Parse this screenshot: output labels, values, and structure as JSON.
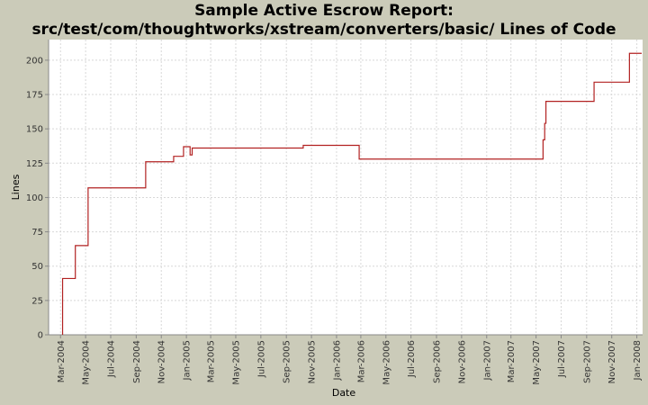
{
  "title_line1": "Sample Active Escrow Report:",
  "title_line2": "src/test/com/thoughtworks/xstream/converters/basic/ Lines of Code",
  "chart_data": {
    "type": "line",
    "step": true,
    "title": "Sample Active Escrow Report: src/test/com/thoughtworks/xstream/converters/basic/ Lines of Code",
    "xlabel": "Date",
    "ylabel": "Lines",
    "x_range": [
      "2004-02-01",
      "2008-01-15"
    ],
    "ylim": [
      0,
      215
    ],
    "y_ticks": [
      0,
      25,
      50,
      75,
      100,
      125,
      150,
      175,
      200
    ],
    "x_ticks": [
      {
        "date": "2004-03-01",
        "label": "Mar-2004"
      },
      {
        "date": "2004-05-01",
        "label": "May-2004"
      },
      {
        "date": "2004-07-01",
        "label": "Jul-2004"
      },
      {
        "date": "2004-09-01",
        "label": "Sep-2004"
      },
      {
        "date": "2004-11-01",
        "label": "Nov-2004"
      },
      {
        "date": "2005-01-01",
        "label": "Jan-2005"
      },
      {
        "date": "2005-03-01",
        "label": "Mar-2005"
      },
      {
        "date": "2005-05-01",
        "label": "May-2005"
      },
      {
        "date": "2005-07-01",
        "label": "Jul-2005"
      },
      {
        "date": "2005-09-01",
        "label": "Sep-2005"
      },
      {
        "date": "2005-11-01",
        "label": "Nov-2005"
      },
      {
        "date": "2006-01-01",
        "label": "Jan-2006"
      },
      {
        "date": "2006-03-01",
        "label": "Mar-2006"
      },
      {
        "date": "2006-05-01",
        "label": "May-2006"
      },
      {
        "date": "2006-07-01",
        "label": "Jul-2006"
      },
      {
        "date": "2006-09-01",
        "label": "Sep-2006"
      },
      {
        "date": "2006-11-01",
        "label": "Nov-2006"
      },
      {
        "date": "2007-01-01",
        "label": "Jan-2007"
      },
      {
        "date": "2007-03-01",
        "label": "Mar-2007"
      },
      {
        "date": "2007-05-01",
        "label": "May-2007"
      },
      {
        "date": "2007-07-01",
        "label": "Jul-2007"
      },
      {
        "date": "2007-09-01",
        "label": "Sep-2007"
      },
      {
        "date": "2007-11-01",
        "label": "Nov-2007"
      },
      {
        "date": "2008-01-01",
        "label": "Jan-2008"
      }
    ],
    "grid": true,
    "series": [
      {
        "color": "#b22222",
        "points": [
          {
            "x": "2004-03-06",
            "y": 0
          },
          {
            "x": "2004-03-06",
            "y": 41
          },
          {
            "x": "2004-04-06",
            "y": 65
          },
          {
            "x": "2004-05-07",
            "y": 107
          },
          {
            "x": "2004-09-24",
            "y": 126
          },
          {
            "x": "2004-12-01",
            "y": 130
          },
          {
            "x": "2004-12-25",
            "y": 137
          },
          {
            "x": "2005-01-10",
            "y": 131
          },
          {
            "x": "2005-01-15",
            "y": 136
          },
          {
            "x": "2005-10-12",
            "y": 138
          },
          {
            "x": "2006-02-25",
            "y": 128
          },
          {
            "x": "2007-05-18",
            "y": 142
          },
          {
            "x": "2007-05-22",
            "y": 154
          },
          {
            "x": "2007-05-25",
            "y": 170
          },
          {
            "x": "2007-09-19",
            "y": 184
          },
          {
            "x": "2007-12-14",
            "y": 205
          }
        ]
      }
    ]
  }
}
